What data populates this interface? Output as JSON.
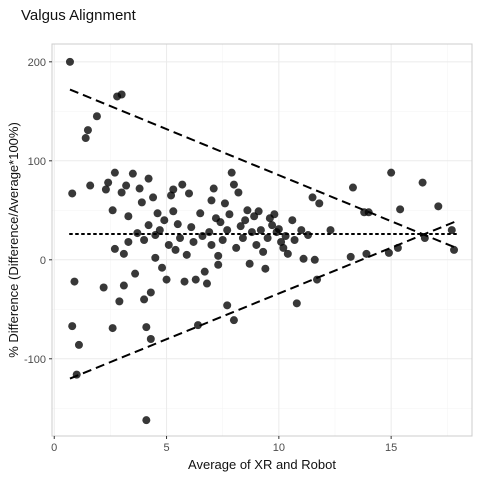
{
  "chart_data": {
    "type": "scatter",
    "title": "Valgus Alignment",
    "xlabel": "Average of XR and Robot",
    "ylabel": "% Difference (Difference/Average*100%)",
    "xlim": [
      -0.1,
      18.6
    ],
    "ylim": [
      -178,
      218
    ],
    "xticks": [
      0,
      5,
      10,
      15
    ],
    "yticks": [
      -100,
      0,
      100,
      200
    ],
    "xtick_labels": [
      "0",
      "5",
      "10",
      "15"
    ],
    "ytick_labels": [
      "-100",
      "0",
      "100",
      "200"
    ],
    "grid": true,
    "points": [
      {
        "x": 0.7,
        "y": 200
      },
      {
        "x": 0.8,
        "y": 67
      },
      {
        "x": 0.8,
        "y": -67
      },
      {
        "x": 0.9,
        "y": -22
      },
      {
        "x": 1.0,
        "y": -116
      },
      {
        "x": 1.1,
        "y": -86
      },
      {
        "x": 1.4,
        "y": 123
      },
      {
        "x": 1.5,
        "y": 131
      },
      {
        "x": 1.6,
        "y": 75
      },
      {
        "x": 1.9,
        "y": 145
      },
      {
        "x": 2.2,
        "y": -28
      },
      {
        "x": 2.3,
        "y": 71
      },
      {
        "x": 2.4,
        "y": 78
      },
      {
        "x": 2.6,
        "y": -69
      },
      {
        "x": 2.6,
        "y": 50
      },
      {
        "x": 2.7,
        "y": 11
      },
      {
        "x": 2.7,
        "y": 88
      },
      {
        "x": 2.8,
        "y": 165
      },
      {
        "x": 2.9,
        "y": -42
      },
      {
        "x": 3.0,
        "y": 167
      },
      {
        "x": 3.0,
        "y": 68
      },
      {
        "x": 3.1,
        "y": 6
      },
      {
        "x": 3.1,
        "y": -26
      },
      {
        "x": 3.2,
        "y": 75
      },
      {
        "x": 3.3,
        "y": 44
      },
      {
        "x": 3.3,
        "y": 18
      },
      {
        "x": 3.5,
        "y": 87
      },
      {
        "x": 3.6,
        "y": -14
      },
      {
        "x": 3.7,
        "y": 27
      },
      {
        "x": 3.8,
        "y": 72
      },
      {
        "x": 3.9,
        "y": 58
      },
      {
        "x": 4.0,
        "y": 20
      },
      {
        "x": 4.0,
        "y": -40
      },
      {
        "x": 4.1,
        "y": -68
      },
      {
        "x": 4.1,
        "y": -162
      },
      {
        "x": 4.2,
        "y": 82
      },
      {
        "x": 4.2,
        "y": 35
      },
      {
        "x": 4.3,
        "y": -33
      },
      {
        "x": 4.3,
        "y": -80
      },
      {
        "x": 4.4,
        "y": 63
      },
      {
        "x": 4.5,
        "y": 2
      },
      {
        "x": 4.5,
        "y": 25
      },
      {
        "x": 4.6,
        "y": 47
      },
      {
        "x": 4.7,
        "y": 30
      },
      {
        "x": 4.8,
        "y": -8
      },
      {
        "x": 4.9,
        "y": 40
      },
      {
        "x": 5.0,
        "y": -20
      },
      {
        "x": 5.1,
        "y": 15
      },
      {
        "x": 5.2,
        "y": 65
      },
      {
        "x": 5.3,
        "y": 71
      },
      {
        "x": 5.3,
        "y": 49
      },
      {
        "x": 5.4,
        "y": 10
      },
      {
        "x": 5.5,
        "y": 36
      },
      {
        "x": 5.6,
        "y": 22
      },
      {
        "x": 5.7,
        "y": 76
      },
      {
        "x": 5.8,
        "y": -22
      },
      {
        "x": 5.9,
        "y": 5
      },
      {
        "x": 6.0,
        "y": 67
      },
      {
        "x": 6.1,
        "y": 33
      },
      {
        "x": 6.2,
        "y": 18
      },
      {
        "x": 6.3,
        "y": -20
      },
      {
        "x": 6.4,
        "y": -66
      },
      {
        "x": 6.5,
        "y": 47
      },
      {
        "x": 6.6,
        "y": 24
      },
      {
        "x": 6.7,
        "y": -12
      },
      {
        "x": 6.8,
        "y": -24
      },
      {
        "x": 6.9,
        "y": 28
      },
      {
        "x": 7.0,
        "y": 60
      },
      {
        "x": 7.0,
        "y": 15
      },
      {
        "x": 7.1,
        "y": 72
      },
      {
        "x": 7.2,
        "y": 42
      },
      {
        "x": 7.3,
        "y": 4
      },
      {
        "x": 7.3,
        "y": -5
      },
      {
        "x": 7.4,
        "y": 38
      },
      {
        "x": 7.5,
        "y": 20
      },
      {
        "x": 7.6,
        "y": 57
      },
      {
        "x": 7.7,
        "y": 30
      },
      {
        "x": 7.7,
        "y": -46
      },
      {
        "x": 7.8,
        "y": 46
      },
      {
        "x": 7.9,
        "y": 88
      },
      {
        "x": 8.0,
        "y": 76
      },
      {
        "x": 8.0,
        "y": -61
      },
      {
        "x": 8.1,
        "y": 12
      },
      {
        "x": 8.2,
        "y": 68
      },
      {
        "x": 8.3,
        "y": 34
      },
      {
        "x": 8.4,
        "y": 22
      },
      {
        "x": 8.5,
        "y": 40
      },
      {
        "x": 8.6,
        "y": 50
      },
      {
        "x": 8.7,
        "y": -4
      },
      {
        "x": 8.8,
        "y": 28
      },
      {
        "x": 8.9,
        "y": 44
      },
      {
        "x": 9.0,
        "y": 15
      },
      {
        "x": 9.1,
        "y": 49
      },
      {
        "x": 9.2,
        "y": 30
      },
      {
        "x": 9.3,
        "y": 8
      },
      {
        "x": 9.4,
        "y": -9
      },
      {
        "x": 9.5,
        "y": 22
      },
      {
        "x": 9.6,
        "y": 42
      },
      {
        "x": 9.7,
        "y": 35
      },
      {
        "x": 9.8,
        "y": 46
      },
      {
        "x": 9.9,
        "y": 28
      },
      {
        "x": 10.0,
        "y": 31
      },
      {
        "x": 10.1,
        "y": 18
      },
      {
        "x": 10.2,
        "y": 12
      },
      {
        "x": 10.3,
        "y": 24
      },
      {
        "x": 10.4,
        "y": 6
      },
      {
        "x": 10.6,
        "y": 40
      },
      {
        "x": 10.7,
        "y": 20
      },
      {
        "x": 10.8,
        "y": -44
      },
      {
        "x": 11.0,
        "y": 30
      },
      {
        "x": 11.1,
        "y": 1
      },
      {
        "x": 11.3,
        "y": 25
      },
      {
        "x": 11.5,
        "y": 63
      },
      {
        "x": 11.6,
        "y": 0
      },
      {
        "x": 11.7,
        "y": -20
      },
      {
        "x": 11.8,
        "y": 57
      },
      {
        "x": 12.3,
        "y": 30
      },
      {
        "x": 13.2,
        "y": 3
      },
      {
        "x": 13.3,
        "y": 73
      },
      {
        "x": 13.8,
        "y": 48
      },
      {
        "x": 13.9,
        "y": 6
      },
      {
        "x": 14.0,
        "y": 48
      },
      {
        "x": 14.9,
        "y": 7
      },
      {
        "x": 15.0,
        "y": 88
      },
      {
        "x": 15.3,
        "y": 12
      },
      {
        "x": 15.4,
        "y": 51
      },
      {
        "x": 16.4,
        "y": 78
      },
      {
        "x": 17.1,
        "y": 54
      },
      {
        "x": 17.7,
        "y": 30
      },
      {
        "x": 17.8,
        "y": 10
      },
      {
        "x": 16.5,
        "y": 22
      }
    ],
    "lines": [
      {
        "style": "dashed",
        "x": [
          0.7,
          17.9
        ],
        "y": [
          172,
          12
        ]
      },
      {
        "style": "dashed",
        "x": [
          0.7,
          17.9
        ],
        "y": [
          -120,
          39
        ]
      },
      {
        "style": "dotted",
        "x": [
          0.7,
          17.9
        ],
        "y": [
          26,
          26
        ]
      }
    ]
  }
}
